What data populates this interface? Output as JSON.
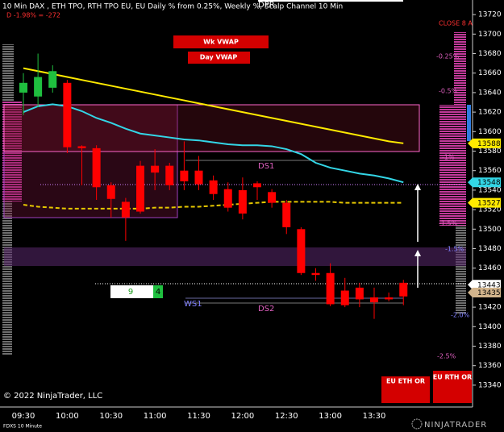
{
  "chart_data": {
    "type": "candlestick",
    "title": "10 Min DAX , ETH TPO, RTH TPO EU, EU Daily % from 0.25%, Weekly %, Scalp Channel 10 Min",
    "subtitle": "D -1.98% = -272",
    "top_label": "DPR",
    "close_label": "CLOSE 8 A",
    "categories": [
      "09:30",
      null,
      null,
      "10:00",
      null,
      null,
      "10:30",
      null,
      null,
      "11:00",
      null,
      null,
      "11:30",
      null,
      null,
      "12:00",
      null,
      null,
      "12:30",
      null,
      null,
      "13:00",
      null,
      null,
      "13:30",
      null,
      null
    ],
    "open": [
      13640,
      13636,
      13645,
      13650,
      13585,
      13583,
      13545,
      13528,
      13565,
      13565,
      13565,
      13560,
      13560,
      13550,
      13541,
      13540,
      13547,
      13538,
      13527,
      13500,
      13455,
      13455,
      13437,
      13440,
      13430,
      13430,
      13445
    ],
    "high": [
      13660,
      13680,
      13668,
      13653,
      13586,
      13586,
      13548,
      13532,
      13570,
      13582,
      13568,
      13590,
      13575,
      13555,
      13548,
      13553,
      13549,
      13541,
      13530,
      13502,
      13460,
      13465,
      13450,
      13445,
      13440,
      13435,
      13448
    ],
    "low": [
      13617,
      13625,
      13640,
      13578,
      13545,
      13530,
      13512,
      13488,
      13516,
      13540,
      13540,
      13540,
      13540,
      13530,
      13518,
      13510,
      13530,
      13522,
      13495,
      13453,
      13447,
      13421,
      13420,
      13420,
      13408,
      13426,
      13422
    ],
    "close": [
      13650,
      13656,
      13662,
      13584,
      13583,
      13543,
      13531,
      13512,
      13518,
      13558,
      13545,
      13549,
      13546,
      13536,
      13522,
      13516,
      13543,
      13527,
      13502,
      13455,
      13453,
      13423,
      13422,
      13428,
      13425,
      13428,
      13431
    ],
    "up_color": "#1fbf3f",
    "down_color": "#ff0000",
    "lines": [
      {
        "color": "#ffea00",
        "dashed": false,
        "values": [
          13665,
          13662,
          13659,
          13656,
          13653,
          13650,
          13647,
          13644,
          13641,
          13638,
          13635,
          13632,
          13629,
          13626,
          13623,
          13620,
          13617,
          13614,
          13611,
          13608,
          13605,
          13602,
          13599,
          13596,
          13593,
          13590,
          13588
        ]
      },
      {
        "color": "#33d6e6",
        "dashed": false,
        "values": [
          13620,
          13626,
          13628,
          13626,
          13621,
          13614,
          13609,
          13603,
          13598,
          13596,
          13594,
          13592,
          13591,
          13589,
          13587,
          13586,
          13586,
          13585,
          13582,
          13577,
          13568,
          13563,
          13560,
          13557,
          13555,
          13552,
          13548
        ]
      },
      {
        "color": "#e6c800",
        "dashed": true,
        "values": [
          13525,
          13523,
          13522,
          13521,
          13521,
          13521,
          13521,
          13521,
          13521,
          13522,
          13522,
          13523,
          13523,
          13524,
          13525,
          13526,
          13527,
          13528,
          13528,
          13528,
          13528,
          13528,
          13527,
          13527,
          13527,
          13527,
          13527
        ]
      }
    ],
    "ylim": [
      13330,
      13730
    ],
    "yticks": [
      13340,
      13360,
      13380,
      13400,
      13420,
      13440,
      13460,
      13480,
      13500,
      13520,
      13540,
      13560,
      13580,
      13600,
      13620,
      13640,
      13660,
      13680,
      13700,
      13720
    ],
    "price_markers": [
      {
        "value": 13588,
        "color": "#ffea00"
      },
      {
        "value": 13548,
        "color": "#33d6e6"
      },
      {
        "value": 13527,
        "color": "#ffea00"
      },
      {
        "value": 13443,
        "color": "#ffffff"
      },
      {
        "value": 13435,
        "color": "#d2b48c"
      }
    ],
    "level_labels": [
      "DS1",
      "DS2",
      "WS1"
    ],
    "pct_labels": [
      "-0.25%",
      "-0.5%",
      "-1%",
      "-1.5%",
      "-1.5%",
      "-2.0%",
      "-2.5%"
    ],
    "vwap_buttons": [
      "Wk VWAP",
      "Day VWAP"
    ],
    "counter": [
      9,
      4
    ],
    "corner_buttons": [
      "EU ETH OR",
      "EU RTH OR"
    ],
    "copyright": "© 2022 NinjaTrader, LLC",
    "instrument": "FDXS 10 Minute",
    "logo": "NINJATRADER"
  }
}
